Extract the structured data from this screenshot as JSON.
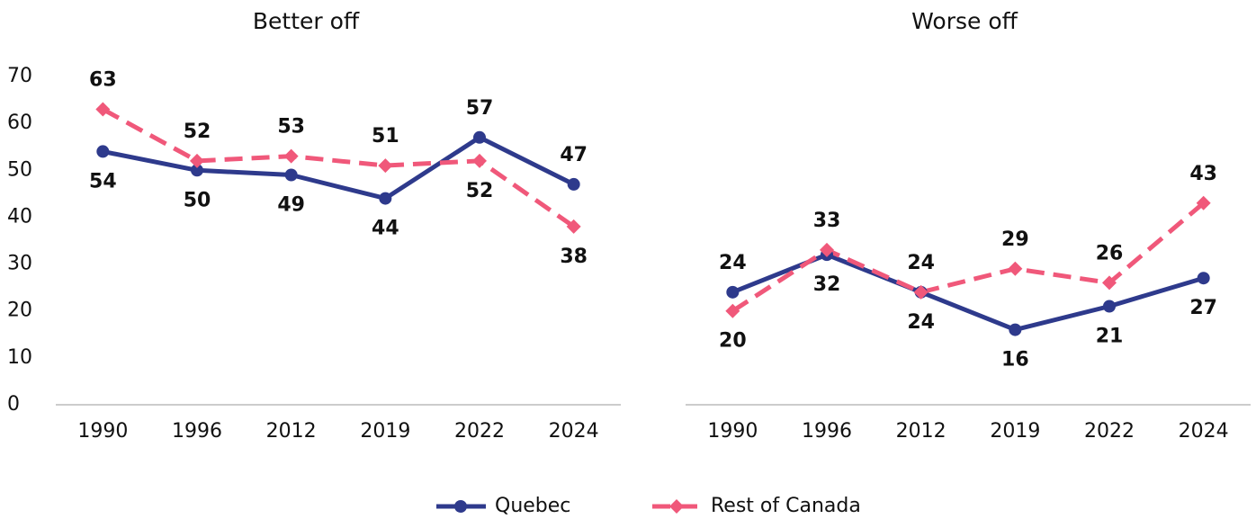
{
  "chart_data": [
    {
      "type": "line",
      "title": "Better off",
      "categories": [
        "1990",
        "1996",
        "2012",
        "2019",
        "2022",
        "2024"
      ],
      "series": [
        {
          "name": "Quebec",
          "color": "#2e3a8c",
          "values": [
            54,
            50,
            49,
            44,
            57,
            47
          ]
        },
        {
          "name": "Rest of Canada",
          "color": "#f0587a",
          "values": [
            63,
            52,
            53,
            51,
            52,
            38
          ]
        }
      ],
      "ylim": [
        0,
        70
      ],
      "yticks": [
        0,
        10,
        20,
        30,
        40,
        50,
        60,
        70
      ],
      "legend": "bottom"
    },
    {
      "type": "line",
      "title": "Worse off",
      "categories": [
        "1990",
        "1996",
        "2012",
        "2019",
        "2022",
        "2024"
      ],
      "series": [
        {
          "color": "#2e3a8c",
          "values": [
            24,
            32,
            24,
            16,
            21,
            27
          ]
        },
        {
          "color": "#f0587a",
          "values": [
            20,
            33,
            24,
            29,
            26,
            43
          ]
        }
      ],
      "ylim": [
        0,
        70
      ]
    }
  ]
}
